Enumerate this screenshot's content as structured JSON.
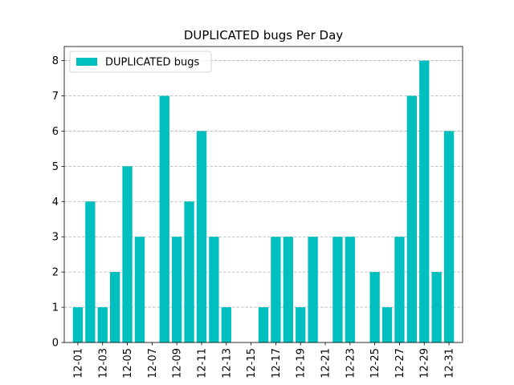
{
  "chart_data": {
    "type": "bar",
    "title": "DUPLICATED bugs Per Day",
    "xlabel": "",
    "ylabel": "",
    "categories": [
      "12-01",
      "12-02",
      "12-03",
      "12-04",
      "12-05",
      "12-06",
      "12-07",
      "12-08",
      "12-09",
      "12-10",
      "12-11",
      "12-12",
      "12-13",
      "12-14",
      "12-15",
      "12-16",
      "12-17",
      "12-18",
      "12-19",
      "12-20",
      "12-21",
      "12-22",
      "12-23",
      "12-24",
      "12-25",
      "12-26",
      "12-27",
      "12-28",
      "12-29",
      "12-30",
      "12-31"
    ],
    "tick_labels": [
      "12-01",
      "12-03",
      "12-05",
      "12-07",
      "12-09",
      "12-11",
      "12-13",
      "12-15",
      "12-17",
      "12-19",
      "12-21",
      "12-23",
      "12-25",
      "12-27",
      "12-29",
      "12-31"
    ],
    "series": [
      {
        "name": "DUPLICATED bugs",
        "color": "#00bfbf",
        "values": [
          1,
          4,
          1,
          2,
          5,
          3,
          0,
          7,
          3,
          4,
          6,
          3,
          1,
          0,
          0,
          1,
          3,
          3,
          1,
          3,
          0,
          3,
          3,
          0,
          2,
          1,
          3,
          7,
          8,
          2,
          6
        ]
      }
    ],
    "ylim": [
      0,
      8.4
    ],
    "yticks": [
      0,
      1,
      2,
      3,
      4,
      5,
      6,
      7,
      8
    ],
    "grid": {
      "y": true,
      "x": false,
      "style": "dashed"
    },
    "legend": {
      "position": "top-left"
    }
  }
}
